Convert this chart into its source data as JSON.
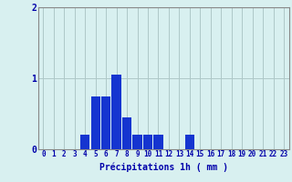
{
  "categories": [
    0,
    1,
    2,
    3,
    4,
    5,
    6,
    7,
    8,
    9,
    10,
    11,
    12,
    13,
    14,
    15,
    16,
    17,
    18,
    19,
    20,
    21,
    22,
    23
  ],
  "values": [
    0,
    0,
    0,
    0,
    0.2,
    0.75,
    0.75,
    1.05,
    0.45,
    0.2,
    0.2,
    0.2,
    0,
    0,
    0.2,
    0,
    0,
    0,
    0,
    0,
    0,
    0,
    0,
    0
  ],
  "bar_color": "#1535d0",
  "background_color": "#d8f0f0",
  "grid_color": "#aec8c8",
  "axis_color": "#0000aa",
  "xlabel": "Précipitations 1h ( mm )",
  "ylim": [
    0,
    2
  ],
  "yticks": [
    0,
    1,
    2
  ],
  "xlabel_fontsize": 7,
  "tick_fontsize": 5.5,
  "ylabel_fontsize": 7
}
